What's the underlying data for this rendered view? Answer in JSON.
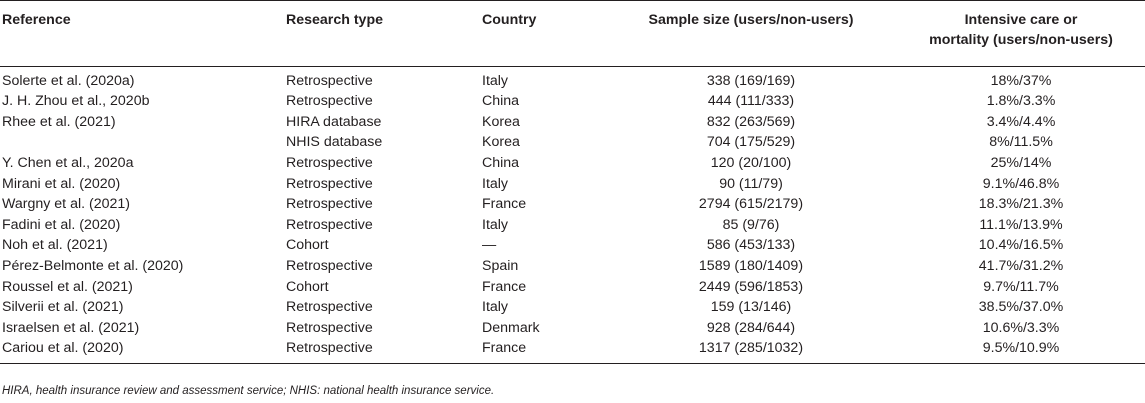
{
  "table": {
    "headers": {
      "reference": "Reference",
      "research_type": "Research type",
      "country": "Country",
      "sample_size": "Sample size (users/non-users)",
      "outcome_line1": "Intensive care or",
      "outcome_line2": "mortality (users/non-users)"
    },
    "rows": [
      {
        "reference": "Solerte et al. (2020a)",
        "research_type": "Retrospective",
        "country": "Italy",
        "sample_size": "338 (169/169)",
        "outcome": "18%/37%"
      },
      {
        "reference": "J. H. Zhou et al., 2020b",
        "research_type": "Retrospective",
        "country": "China",
        "sample_size": "444 (111/333)",
        "outcome": "1.8%/3.3%"
      },
      {
        "reference": "Rhee et al. (2021)",
        "research_type": "HIRA database",
        "country": "Korea",
        "sample_size": "832 (263/569)",
        "outcome": "3.4%/4.4%"
      },
      {
        "reference": "",
        "research_type": "NHIS database",
        "country": "Korea",
        "sample_size": "704 (175/529)",
        "outcome": "8%/11.5%"
      },
      {
        "reference": "Y. Chen et al., 2020a",
        "research_type": "Retrospective",
        "country": "China",
        "sample_size": "120 (20/100)",
        "outcome": "25%/14%"
      },
      {
        "reference": "Mirani et al. (2020)",
        "research_type": "Retrospective",
        "country": "Italy",
        "sample_size": "90 (11/79)",
        "outcome": "9.1%/46.8%"
      },
      {
        "reference": "Wargny et al. (2021)",
        "research_type": "Retrospective",
        "country": "France",
        "sample_size": "2794 (615/2179)",
        "outcome": "18.3%/21.3%"
      },
      {
        "reference": "Fadini et al. (2020)",
        "research_type": "Retrospective",
        "country": "Italy",
        "sample_size": "85 (9/76)",
        "outcome": "11.1%/13.9%"
      },
      {
        "reference": "Noh et al. (2021)",
        "research_type": "Cohort",
        "country": "—",
        "sample_size": "586 (453/133)",
        "outcome": "10.4%/16.5%"
      },
      {
        "reference": "Pérez-Belmonte et al. (2020)",
        "research_type": "Retrospective",
        "country": "Spain",
        "sample_size": "1589 (180/1409)",
        "outcome": "41.7%/31.2%"
      },
      {
        "reference": "Roussel et al. (2021)",
        "research_type": "Cohort",
        "country": "France",
        "sample_size": "2449 (596/1853)",
        "outcome": "9.7%/11.7%"
      },
      {
        "reference": "Silverii et al. (2021)",
        "research_type": "Retrospective",
        "country": "Italy",
        "sample_size": "159 (13/146)",
        "outcome": "38.5%/37.0%"
      },
      {
        "reference": "Israelsen et al. (2021)",
        "research_type": "Retrospective",
        "country": "Denmark",
        "sample_size": "928 (284/644)",
        "outcome": "10.6%/3.3%"
      },
      {
        "reference": "Cariou et al. (2020)",
        "research_type": "Retrospective",
        "country": "France",
        "sample_size": "1317 (285/1032)",
        "outcome": "9.5%/10.9%"
      }
    ],
    "footnote": "HIRA, health insurance review and assessment service; NHIS: national health insurance service."
  }
}
